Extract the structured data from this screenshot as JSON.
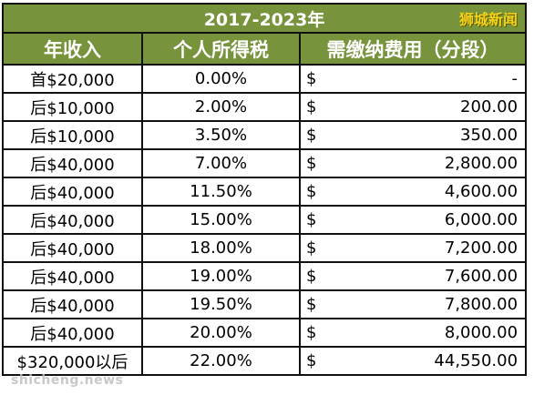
{
  "table": {
    "title": "2017-2023年",
    "headers": [
      "年收入",
      "个人所得税",
      "需缴纳费用（分段）"
    ],
    "rows": [
      {
        "income": "首$20,000",
        "rate": "0.00%",
        "currency": "$",
        "amount": "-"
      },
      {
        "income": "后$10,000",
        "rate": "2.00%",
        "currency": "$",
        "amount": "200.00"
      },
      {
        "income": "后$10,000",
        "rate": "3.50%",
        "currency": "$",
        "amount": "350.00"
      },
      {
        "income": "后$40,000",
        "rate": "7.00%",
        "currency": "$",
        "amount": "2,800.00"
      },
      {
        "income": "后$40,000",
        "rate": "11.50%",
        "currency": "$",
        "amount": "4,600.00"
      },
      {
        "income": "后$40,000",
        "rate": "15.00%",
        "currency": "$",
        "amount": "6,000.00"
      },
      {
        "income": "后$40,000",
        "rate": "18.00%",
        "currency": "$",
        "amount": "7,200.00"
      },
      {
        "income": "后$40,000",
        "rate": "19.00%",
        "currency": "$",
        "amount": "7,600.00"
      },
      {
        "income": "后$40,000",
        "rate": "19.50%",
        "currency": "$",
        "amount": "7,800.00"
      },
      {
        "income": "后$40,000",
        "rate": "20.00%",
        "currency": "$",
        "amount": "8,000.00"
      },
      {
        "income": "$320,000以后",
        "rate": "22.00%",
        "currency": "$",
        "amount": "44,550.00"
      }
    ]
  },
  "watermark_top": "狮城新闻",
  "watermark_bottom": "shicheng.news",
  "colors": {
    "header_green": "#77933c",
    "watermark_yellow": "#f2d21b"
  }
}
